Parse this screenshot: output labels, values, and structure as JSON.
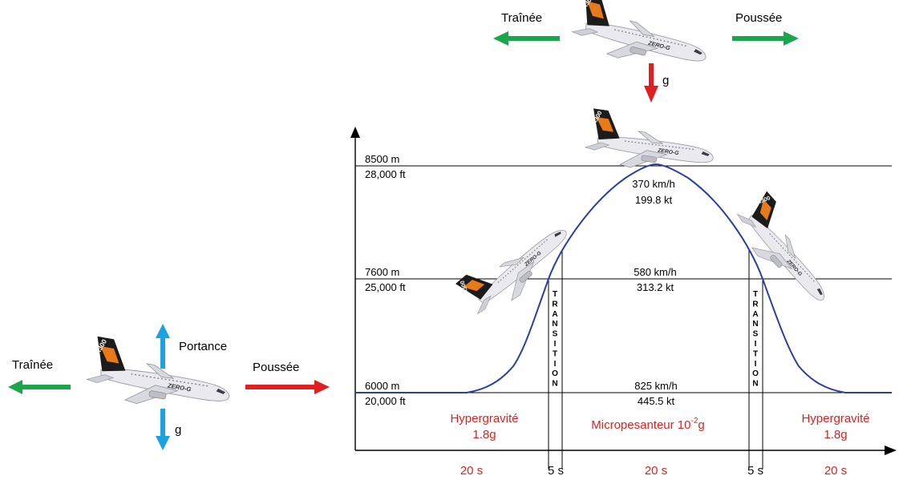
{
  "colors": {
    "green_arrow": "#1aa64a",
    "red_arrow": "#e02020",
    "blue_arrow": "#1aa3de",
    "curve": "#2b3fa6",
    "red_text": "#e02020",
    "plane_body": "#e8e8ec",
    "plane_tail": "#1a1a1a",
    "plane_stripe": "#e87a1a"
  },
  "icons": [
    "airplane-icon"
  ],
  "top_forces": {
    "drag": "Traînée",
    "thrust": "Poussée",
    "gravity": "g"
  },
  "left_forces": {
    "drag": "Traînée",
    "thrust": "Poussée",
    "lift": "Portance",
    "gravity": "g"
  },
  "plane_marks": {
    "tail_text": "A300",
    "body_text": "ZERO-G"
  },
  "altitudes": [
    {
      "m": "8500 m",
      "ft": "28,000 ft"
    },
    {
      "m": "7600 m",
      "ft": "25,000 ft"
    },
    {
      "m": "6000 m",
      "ft": "20,000 ft"
    }
  ],
  "speeds": [
    {
      "kmh": "370 km/h",
      "kt": "199.8 kt"
    },
    {
      "kmh": "580 km/h",
      "kt": "313.2 kt"
    },
    {
      "kmh": "825 km/h",
      "kt": "445.5 kt"
    }
  ],
  "phases": {
    "hyper_left": {
      "line1": "Hypergravité",
      "line2": "1.8g"
    },
    "micro": {
      "text": "Micropesanteur 10",
      "exp": "-2",
      "suffix": "g"
    },
    "hyper_right": {
      "line1": "Hypergravité",
      "line2": "1.8g"
    }
  },
  "transition_label": "TRANSITION",
  "durations": [
    "20 s",
    "5 s",
    "20 s",
    "5 s",
    "20 s"
  ]
}
